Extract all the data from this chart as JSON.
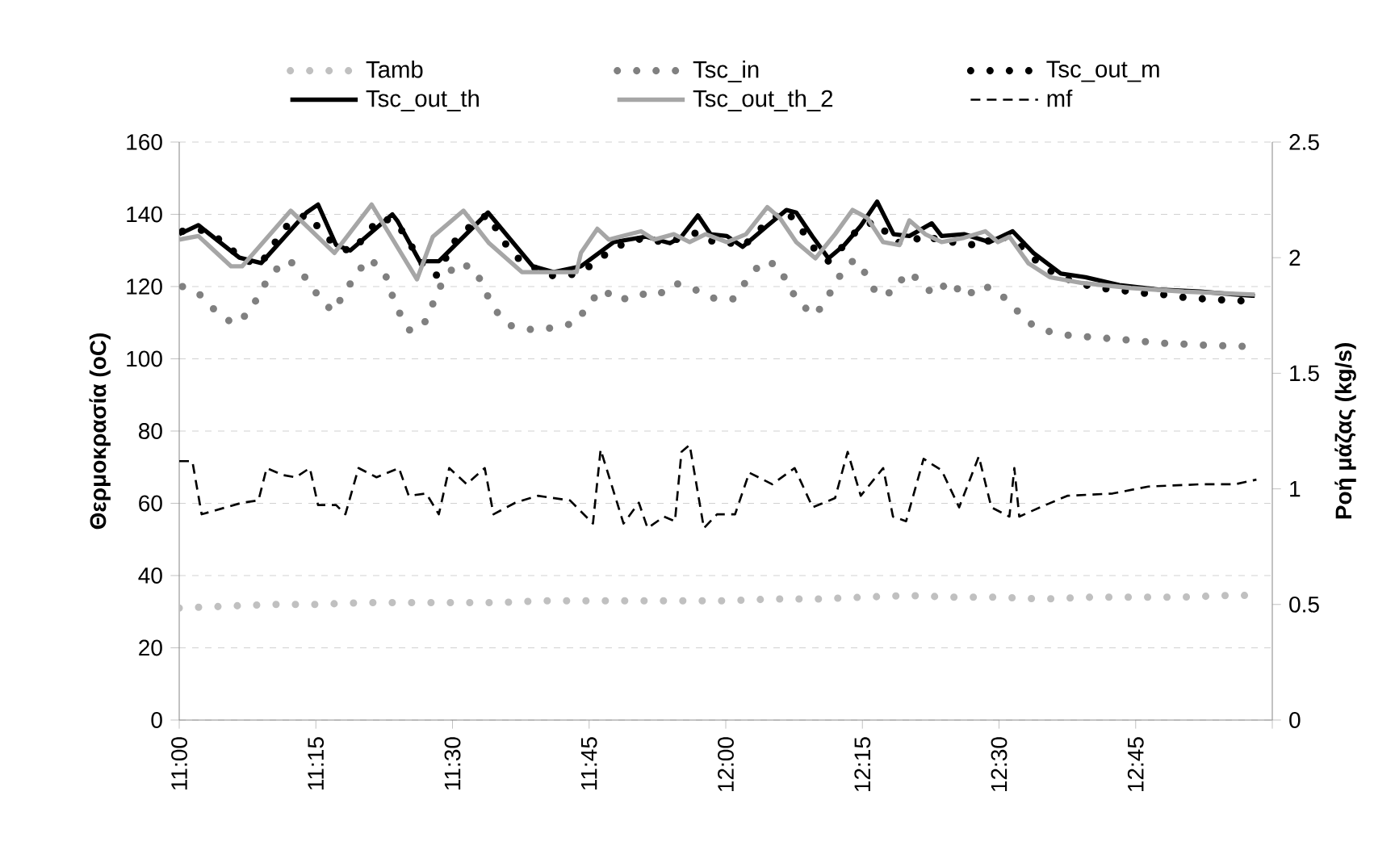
{
  "chart_data": {
    "type": "line",
    "ylabel": "Θερμοκρασία (oC)",
    "y2label": "Ροή μάζας (kg/s)",
    "xlim": [
      11,
      13
    ],
    "xticks": [
      {
        "value": 11,
        "label": "11:00"
      },
      {
        "value": 11.25,
        "label": "11:15"
      },
      {
        "value": 11.5,
        "label": "11:30"
      },
      {
        "value": 11.75,
        "label": "11:45"
      },
      {
        "value": 12,
        "label": "12:00"
      },
      {
        "value": 12.25,
        "label": "12:15"
      },
      {
        "value": 12.5,
        "label": "12:30"
      },
      {
        "value": 12.75,
        "label": "12:45"
      },
      {
        "value": 13,
        "label": null
      }
    ],
    "ylim": [
      0,
      160
    ],
    "yticks": [
      0,
      20,
      40,
      60,
      80,
      100,
      120,
      140,
      160
    ],
    "y2lim": [
      0,
      2.5
    ],
    "y2ticks": [
      0,
      0.5,
      1,
      1.5,
      2,
      2.5
    ],
    "grid": "y",
    "legend": "top",
    "series": [
      {
        "name": "Tamb",
        "color": "#c0c0c0",
        "line_style": "dotted",
        "x": [
          11.0,
          11.083,
          11.167,
          11.25,
          11.333,
          11.417,
          11.5,
          11.583,
          11.667,
          11.75,
          11.833,
          11.917,
          12.0,
          12.083,
          12.167,
          12.25,
          12.333,
          12.417,
          12.5,
          12.583,
          12.667,
          12.75,
          12.833,
          12.917,
          12.95
        ],
        "values": [
          31,
          31.5,
          32,
          32,
          32.5,
          32.5,
          32.5,
          32.5,
          33,
          33,
          33,
          33,
          33,
          33.5,
          33.5,
          34,
          34.5,
          34,
          34,
          33.5,
          34,
          34,
          34,
          34.5,
          34.5
        ]
      },
      {
        "name": "Tsc_in",
        "color": "#808080",
        "line_style": "dotted",
        "x": [
          11.006,
          11.038,
          11.068,
          11.1,
          11.13,
          11.148,
          11.171,
          11.201,
          11.23,
          11.254,
          11.281,
          11.322,
          11.346,
          11.375,
          11.387,
          11.402,
          11.423,
          11.449,
          11.482,
          11.508,
          11.541,
          11.559,
          11.577,
          11.606,
          11.647,
          11.685,
          11.727,
          11.748,
          11.774,
          11.804,
          11.839,
          11.875,
          11.907,
          11.946,
          11.981,
          12.014,
          12.04,
          12.067,
          12.096,
          12.114,
          12.135,
          12.164,
          12.188,
          12.209,
          12.235,
          12.259,
          12.277,
          12.309,
          12.33,
          12.353,
          12.38,
          12.41,
          12.439,
          12.466,
          12.495,
          12.525,
          12.551,
          12.587,
          12.628,
          12.67,
          12.711,
          12.752,
          12.791,
          12.874,
          12.956
        ],
        "values": [
          120,
          117.7,
          113,
          109.6,
          113,
          118.6,
          124,
          127.4,
          122.6,
          117.5,
          113,
          123,
          127.8,
          124.4,
          118.6,
          113,
          107.6,
          110,
          121.4,
          126.5,
          125,
          119,
          113.6,
          109.2,
          108,
          108.6,
          110,
          115,
          119.3,
          116,
          118,
          117.5,
          121,
          119,
          116.6,
          116.6,
          122,
          127,
          126,
          120.4,
          115.3,
          112,
          117.5,
          123,
          127.5,
          123,
          117.5,
          118.6,
          124,
          122,
          117.7,
          121.6,
          117,
          120.4,
          119,
          114.7,
          110.2,
          107.7,
          106.5,
          106,
          105.5,
          105,
          104.4,
          103.8,
          103.4
        ]
      },
      {
        "name": "Tsc_out_m",
        "color": "#000000",
        "line_style": "dotted",
        "x": [
          11.006,
          11.035,
          11.083,
          11.112,
          11.148,
          11.171,
          11.195,
          11.233,
          11.257,
          11.284,
          11.316,
          11.343,
          11.366,
          11.396,
          11.42,
          11.44,
          11.47,
          11.508,
          11.535,
          11.565,
          11.588,
          11.612,
          11.644,
          11.677,
          11.727,
          11.759,
          11.789,
          11.819,
          11.854,
          11.889,
          11.919,
          11.949,
          11.978,
          12.002,
          12.031,
          12.055,
          12.076,
          12.111,
          12.138,
          12.159,
          12.188,
          12.217,
          12.247,
          12.277,
          12.307,
          12.336,
          12.365,
          12.395,
          12.436,
          12.466,
          12.495,
          12.534,
          12.569,
          12.601,
          12.643,
          12.682,
          12.72,
          12.761,
          12.799,
          12.838,
          12.882,
          12.924,
          12.962
        ],
        "values": [
          135.3,
          136,
          132.3,
          127.8,
          126,
          131.3,
          136.5,
          140,
          136,
          131.5,
          129.6,
          134.5,
          139,
          138,
          132.6,
          127,
          123,
          133.5,
          137,
          140,
          133.8,
          128.6,
          125.6,
          123,
          123.4,
          126.4,
          130,
          132.3,
          133.5,
          132,
          133.5,
          135,
          132.3,
          132.3,
          131,
          134.5,
          138,
          141,
          136,
          131,
          127,
          131.5,
          136.8,
          138,
          132.3,
          132,
          134.5,
          132.3,
          132.3,
          130.8,
          134.5,
          132,
          127,
          123.6,
          121,
          119.6,
          119,
          118.2,
          117.8,
          117,
          116.5,
          116.2,
          115.9
        ]
      },
      {
        "name": "Tsc_out_th",
        "color": "#000000",
        "line_style": "solid",
        "x": [
          11.0,
          11.035,
          11.11,
          11.15,
          11.233,
          11.254,
          11.287,
          11.313,
          11.39,
          11.4,
          11.44,
          11.475,
          11.565,
          11.647,
          11.685,
          11.735,
          11.795,
          11.854,
          11.898,
          11.919,
          11.949,
          11.972,
          12.002,
          12.031,
          12.076,
          12.111,
          12.129,
          12.159,
          12.188,
          12.217,
          12.247,
          12.277,
          12.307,
          12.336,
          12.377,
          12.395,
          12.436,
          12.483,
          12.525,
          12.563,
          12.613,
          12.658,
          12.72,
          12.791,
          12.868,
          12.968
        ],
        "values": [
          134.5,
          137,
          128,
          126.5,
          140.5,
          142.7,
          131.5,
          130,
          140,
          138,
          127,
          127,
          140.5,
          125.6,
          124,
          125.6,
          132.3,
          133.8,
          132,
          133.8,
          139.7,
          134.5,
          134,
          131,
          136.8,
          141.2,
          140.5,
          133.8,
          127.8,
          131.5,
          136.8,
          143.5,
          134.5,
          134,
          137.5,
          134,
          134.5,
          132.3,
          135.3,
          129.3,
          123.6,
          122.6,
          120.4,
          119.2,
          118.6,
          117.4
        ]
      },
      {
        "name": "Tsc_out_th_2",
        "color": "#a6a6a6",
        "line_style": "solid",
        "x": [
          11.0,
          11.035,
          11.095,
          11.115,
          11.204,
          11.284,
          11.352,
          11.435,
          11.464,
          11.52,
          11.567,
          11.627,
          11.727,
          11.735,
          11.765,
          11.786,
          11.845,
          11.869,
          11.905,
          11.934,
          11.963,
          12.002,
          12.037,
          12.076,
          12.099,
          12.129,
          12.164,
          12.2,
          12.232,
          12.259,
          12.288,
          12.318,
          12.336,
          12.365,
          12.395,
          12.436,
          12.475,
          12.498,
          12.519,
          12.554,
          12.593,
          12.652,
          12.741,
          12.838,
          12.968
        ],
        "values": [
          133,
          134,
          125.6,
          125.6,
          141,
          129.3,
          142.7,
          122,
          133.8,
          141,
          132,
          124,
          124,
          129.3,
          136,
          133,
          135.3,
          133,
          134.5,
          132.3,
          134.5,
          132.3,
          134.5,
          142,
          139,
          132.3,
          127.8,
          134.5,
          141.2,
          139,
          132.3,
          131.5,
          138.3,
          134.5,
          132.3,
          133.5,
          135.3,
          132.3,
          133.8,
          126.4,
          122.6,
          121,
          119.6,
          118.6,
          117.8
        ]
      },
      {
        "name": "mf",
        "color": "#000000",
        "line_style": "dashed",
        "axis": "y2",
        "x": [
          11.0,
          11.024,
          11.041,
          11.115,
          11.145,
          11.16,
          11.189,
          11.213,
          11.239,
          11.254,
          11.287,
          11.304,
          11.328,
          11.361,
          11.402,
          11.42,
          11.452,
          11.475,
          11.494,
          11.526,
          11.559,
          11.575,
          11.615,
          11.656,
          11.715,
          11.757,
          11.771,
          11.813,
          11.841,
          11.857,
          11.887,
          11.907,
          11.919,
          11.934,
          11.96,
          11.984,
          12.017,
          12.043,
          12.085,
          12.126,
          12.159,
          12.2,
          12.223,
          12.247,
          12.288,
          12.306,
          12.33,
          12.362,
          12.395,
          12.427,
          12.463,
          12.486,
          12.519,
          12.528,
          12.537,
          12.575,
          12.625,
          12.708,
          12.773,
          12.871,
          12.932,
          12.971
        ],
        "values": [
          1.12,
          1.12,
          0.89,
          0.94,
          0.95,
          1.09,
          1.06,
          1.05,
          1.09,
          0.93,
          0.93,
          0.89,
          1.09,
          1.05,
          1.09,
          0.97,
          0.98,
          0.89,
          1.09,
          1.02,
          1.09,
          0.89,
          0.94,
          0.97,
          0.95,
          0.85,
          1.17,
          0.85,
          0.94,
          0.83,
          0.88,
          0.86,
          1.16,
          1.19,
          0.83,
          0.89,
          0.89,
          1.07,
          1.02,
          1.09,
          0.92,
          0.96,
          1.16,
          0.97,
          1.09,
          0.88,
          0.86,
          1.13,
          1.08,
          0.92,
          1.14,
          0.92,
          0.88,
          1.09,
          0.88,
          0.92,
          0.97,
          0.98,
          1.01,
          1.02,
          1.02,
          1.04
        ]
      }
    ]
  }
}
